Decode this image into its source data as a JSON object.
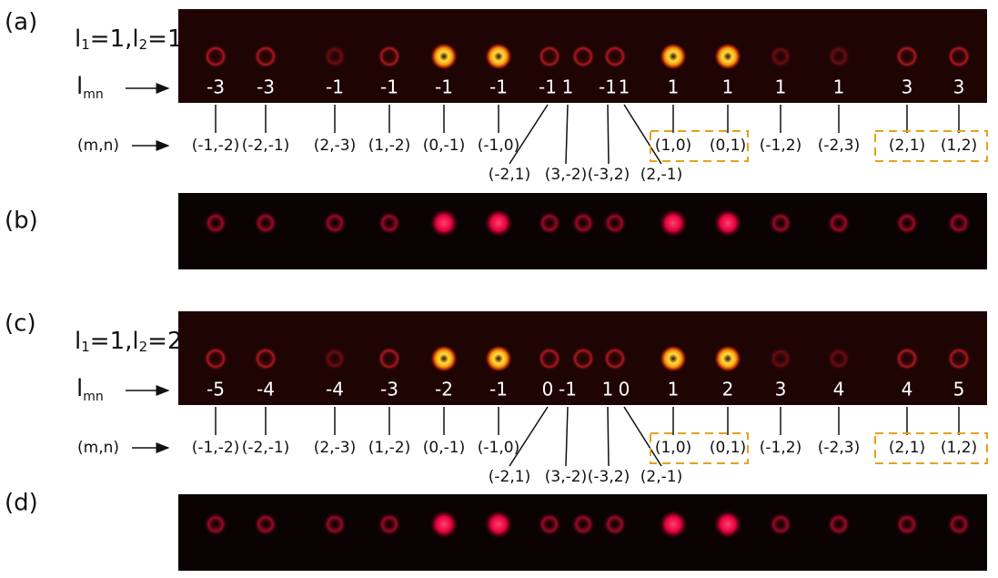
{
  "panels": [
    {
      "label": "(a)",
      "heading": [
        "l",
        "1",
        "=1,l",
        "2",
        "=1"
      ],
      "lmn_label": [
        "l",
        "mn"
      ],
      "lmn": [
        "-3",
        "-3",
        "-1",
        "-1",
        "-1",
        "-1",
        "-1",
        "1",
        "-1",
        "1",
        "1",
        "1",
        "1",
        "1",
        "3",
        "3"
      ],
      "mn_label": "(m,n)",
      "mn": [
        "(-1,-2)",
        "(-2,-1)",
        "(2,-3)",
        "(1,-2)",
        "(0,-1)",
        "(-1,0)",
        "(-2,1)",
        "(3,-2)",
        "(-3,2)",
        "(2,-1)",
        "(1,0)",
        "(0,1)",
        "(-1,2)",
        "(-2,3)",
        "(2,1)",
        "(1,2)"
      ]
    },
    {
      "label": "(b)"
    },
    {
      "label": "(c)",
      "heading": [
        "l",
        "1",
        "=1,l",
        "2",
        "=2"
      ],
      "lmn_label": [
        "l",
        "mn"
      ],
      "lmn": [
        "-5",
        "-4",
        "-4",
        "-3",
        "-2",
        "-1",
        "0",
        "-1",
        "1",
        "0",
        "1",
        "2",
        "3",
        "4",
        "4",
        "5"
      ],
      "mn_label": "(m,n)",
      "mn": [
        "(-1,-2)",
        "(-2,-1)",
        "(2,-3)",
        "(1,-2)",
        "(0,-1)",
        "(-1,0)",
        "(-2,1)",
        "(3,-2)",
        "(-3,2)",
        "(2,-1)",
        "(1,0)",
        "(0,1)",
        "(-1,2)",
        "(-2,3)",
        "(2,1)",
        "(1,2)"
      ]
    },
    {
      "label": "(d)"
    }
  ]
}
